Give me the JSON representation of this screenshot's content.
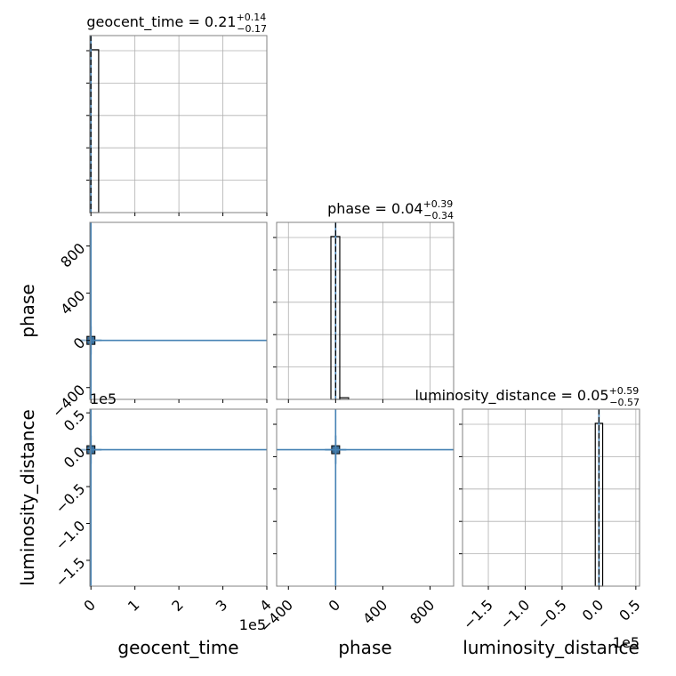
{
  "chart_data": {
    "type": "corner",
    "colors": {
      "samples": "#4682b4",
      "truth": "#4682b4",
      "histogram": "#000000",
      "quantile": "#000000",
      "grid": "#b0b0b0",
      "frame": "#808080"
    },
    "grid": true,
    "parameters": [
      {
        "name": "geocent_time",
        "title_prefix": "geocent_time = 0.21",
        "err_plus": "+0.14",
        "err_minus": "−0.17",
        "truth": 0.2,
        "range": [
          -2500,
          400000
        ],
        "ticks": [
          0,
          100000,
          200000,
          300000,
          400000
        ],
        "tick_labels": [
          "0",
          "1",
          "2",
          "3",
          "4"
        ],
        "offset_label": "1e5",
        "hist_bins": [
          {
            "lo": -2500,
            "hi": 17500,
            "height": 1.0
          }
        ]
      },
      {
        "name": "phase",
        "title_prefix": "phase = 0.04",
        "err_plus": "+0.39",
        "err_minus": "−0.34",
        "truth": 0.0,
        "range": [
          -500,
          1000
        ],
        "ticks": [
          -400,
          0,
          400,
          800
        ],
        "tick_labels": [
          "−400",
          "0",
          "400",
          "800"
        ],
        "offset_label": "",
        "hist_bins": [
          {
            "lo": -40,
            "hi": 35,
            "height": 1.0
          },
          {
            "lo": 35,
            "hi": 110,
            "height": 0.01
          }
        ]
      },
      {
        "name": "luminosity_distance",
        "title_prefix": "luminosity_distance = 0.05",
        "err_plus": "+0.59",
        "err_minus": "−0.57",
        "truth": 0.0,
        "range": [
          -185000,
          55000
        ],
        "ticks": [
          -150000,
          -100000,
          -50000,
          0,
          50000
        ],
        "tick_labels": [
          "−1.5",
          "−1.0",
          "−0.5",
          "0.0",
          "0.5"
        ],
        "offset_label": "1e5",
        "hist_bins": [
          {
            "lo": -5000,
            "hi": 5000,
            "height": 1.0
          }
        ]
      }
    ],
    "sample_cluster": [
      {
        "x": 0.2,
        "y": 0.0
      }
    ]
  }
}
